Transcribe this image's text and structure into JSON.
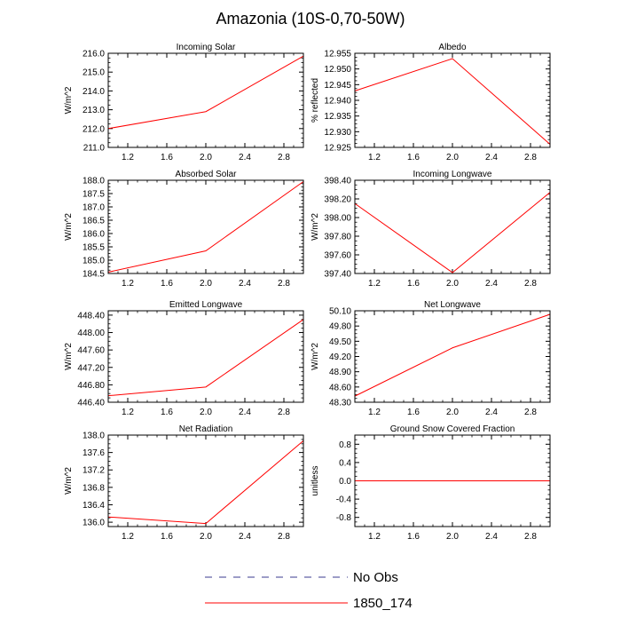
{
  "figure": {
    "title": "Amazonia (10S-0,70-50W)"
  },
  "legend": {
    "entries": [
      {
        "label": "No Obs",
        "style": "dashed",
        "color": "#3b3b8f"
      },
      {
        "label": "1850_174",
        "style": "solid",
        "color": "#ff0000"
      }
    ]
  },
  "chart_data": [
    {
      "type": "line",
      "title": "Incoming Solar",
      "ylabel": "W/m^2",
      "xlim": [
        1.0,
        3.0
      ],
      "ylim": [
        211.0,
        216.0
      ],
      "x_ticks": [
        "1.2",
        "1.6",
        "2.0",
        "2.4",
        "2.8"
      ],
      "y_ticks": [
        "211.0",
        "212.0",
        "213.0",
        "214.0",
        "215.0",
        "216.0"
      ],
      "series": [
        {
          "name": "1850_174",
          "color": "#ff0000",
          "x": [
            1,
            2,
            3
          ],
          "y": [
            212.0,
            212.9,
            215.85
          ]
        }
      ]
    },
    {
      "type": "line",
      "title": "Albedo",
      "ylabel": "% reflected",
      "xlim": [
        1.0,
        3.0
      ],
      "ylim": [
        12.925,
        12.955
      ],
      "x_ticks": [
        "1.2",
        "1.6",
        "2.0",
        "2.4",
        "2.8"
      ],
      "y_ticks": [
        "12.925",
        "12.930",
        "12.935",
        "12.940",
        "12.945",
        "12.950",
        "12.955"
      ],
      "series": [
        {
          "name": "1850_174",
          "color": "#ff0000",
          "x": [
            1,
            2,
            3
          ],
          "y": [
            12.943,
            12.9533,
            12.926
          ]
        }
      ]
    },
    {
      "type": "line",
      "title": "Absorbed Solar",
      "ylabel": "W/m^2",
      "xlim": [
        1.0,
        3.0
      ],
      "ylim": [
        184.5,
        188.0
      ],
      "x_ticks": [
        "1.2",
        "1.6",
        "2.0",
        "2.4",
        "2.8"
      ],
      "y_ticks": [
        "184.5",
        "185.0",
        "185.5",
        "186.0",
        "186.5",
        "187.0",
        "187.5",
        "188.0"
      ],
      "series": [
        {
          "name": "1850_174",
          "color": "#ff0000",
          "x": [
            1,
            2,
            3
          ],
          "y": [
            184.55,
            185.35,
            187.95
          ]
        }
      ]
    },
    {
      "type": "line",
      "title": "Incoming Longwave",
      "ylabel": "W/m^2",
      "xlim": [
        1.0,
        3.0
      ],
      "ylim": [
        397.4,
        398.4
      ],
      "x_ticks": [
        "1.2",
        "1.6",
        "2.0",
        "2.4",
        "2.8"
      ],
      "y_ticks": [
        "397.40",
        "397.60",
        "397.80",
        "398.00",
        "398.20",
        "398.40"
      ],
      "series": [
        {
          "name": "1850_174",
          "color": "#ff0000",
          "x": [
            1,
            2,
            3
          ],
          "y": [
            398.15,
            397.41,
            398.27
          ]
        }
      ]
    },
    {
      "type": "line",
      "title": "Emitted Longwave",
      "ylabel": "W/m^2",
      "xlim": [
        1.0,
        3.0
      ],
      "ylim": [
        446.4,
        448.5
      ],
      "x_ticks": [
        "1.2",
        "1.6",
        "2.0",
        "2.4",
        "2.8"
      ],
      "y_ticks": [
        "446.40",
        "446.80",
        "447.20",
        "447.60",
        "448.00",
        "448.40"
      ],
      "series": [
        {
          "name": "1850_174",
          "color": "#ff0000",
          "x": [
            1,
            2,
            3
          ],
          "y": [
            446.55,
            446.75,
            448.3
          ]
        }
      ]
    },
    {
      "type": "line",
      "title": "Net Longwave",
      "ylabel": "W/m^2",
      "xlim": [
        1.0,
        3.0
      ],
      "ylim": [
        48.3,
        50.1
      ],
      "x_ticks": [
        "1.2",
        "1.6",
        "2.0",
        "2.4",
        "2.8"
      ],
      "y_ticks": [
        "48.30",
        "48.60",
        "48.90",
        "49.20",
        "49.50",
        "49.80",
        "50.10"
      ],
      "series": [
        {
          "name": "1850_174",
          "color": "#ff0000",
          "x": [
            1,
            2,
            3
          ],
          "y": [
            48.42,
            49.37,
            50.03
          ]
        }
      ]
    },
    {
      "type": "line",
      "title": "Net Radiation",
      "ylabel": "W/m^2",
      "xlim": [
        1.0,
        3.0
      ],
      "ylim": [
        135.9,
        138.0
      ],
      "x_ticks": [
        "1.2",
        "1.6",
        "2.0",
        "2.4",
        "2.8"
      ],
      "y_ticks": [
        "136.0",
        "136.4",
        "136.8",
        "137.2",
        "137.6",
        "138.0"
      ],
      "series": [
        {
          "name": "1850_174",
          "color": "#ff0000",
          "x": [
            1,
            2,
            3
          ],
          "y": [
            136.12,
            135.97,
            137.87
          ]
        }
      ]
    },
    {
      "type": "line",
      "title": "Ground Snow Covered Fraction",
      "ylabel": "unitless",
      "xlim": [
        1.0,
        3.0
      ],
      "ylim": [
        -1.0,
        1.0
      ],
      "x_ticks": [
        "1.2",
        "1.6",
        "2.0",
        "2.4",
        "2.8"
      ],
      "y_ticks": [
        "-0.8",
        "-0.4",
        "0.0",
        "0.4",
        "0.8"
      ],
      "series": [
        {
          "name": "1850_174",
          "color": "#ff0000",
          "x": [
            1,
            2,
            3
          ],
          "y": [
            0.0,
            0.0,
            0.0
          ]
        }
      ]
    }
  ]
}
